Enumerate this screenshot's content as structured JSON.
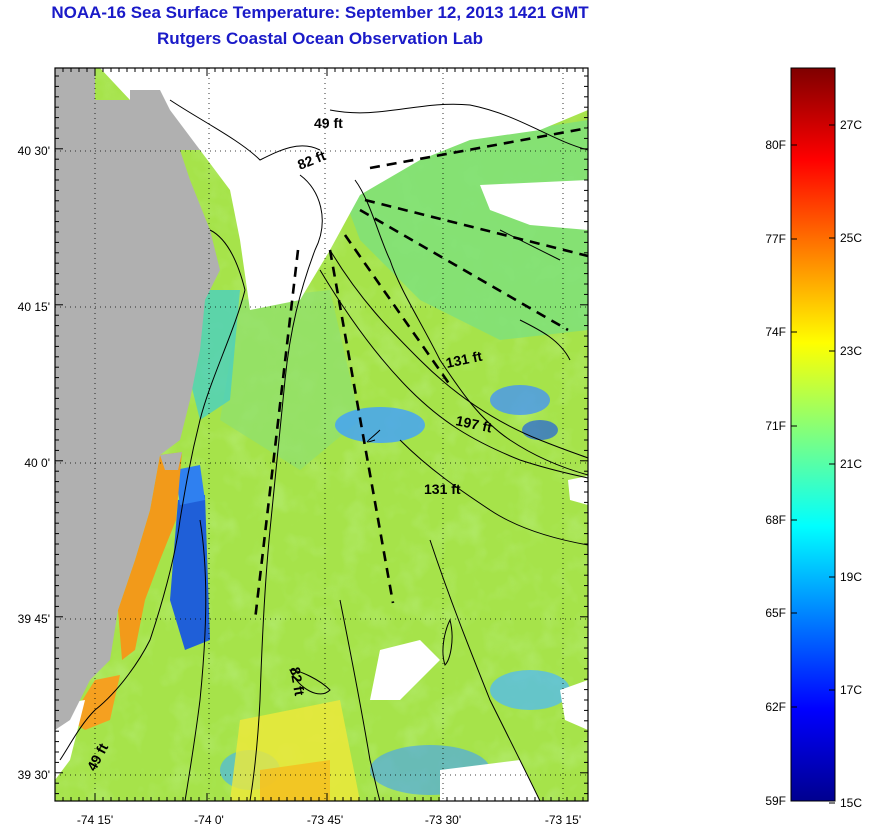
{
  "title_line1": "NOAA-16 Sea Surface Temperature:  September 12, 2013 1421 GMT",
  "title_line2": "Rutgers Coastal Ocean Observation Lab",
  "map": {
    "lat_labels": [
      "40 30'",
      "40 15'",
      "40 0'",
      "39 45'",
      "39 30'"
    ],
    "lon_labels": [
      "-74 15'",
      "-74 0'",
      "-73 45'",
      "-73 30'",
      "-73 15'"
    ],
    "contour_labels": [
      "49 ft",
      "82 ft",
      "131 ft",
      "197 ft",
      "131 ft",
      "82 ft",
      "49 ft"
    ]
  },
  "colorbar": {
    "fahrenheit": [
      "80F",
      "77F",
      "74F",
      "71F",
      "68F",
      "65F",
      "62F",
      "59F"
    ],
    "celsius": [
      "27C",
      "25C",
      "23C",
      "21C",
      "19C",
      "17C",
      "15C"
    ],
    "colors": [
      "#7f0000",
      "#ff0000",
      "#ff7f00",
      "#ffff00",
      "#7fff7f",
      "#00ffff",
      "#007fff",
      "#0000ff",
      "#00008f"
    ]
  },
  "colors": {
    "title": "#1a1ac8",
    "land": "#b0b0b0",
    "water_green": "#a6e34a",
    "warm_orange": "#f29a1a",
    "cool_blue": "#1f5fd8"
  }
}
